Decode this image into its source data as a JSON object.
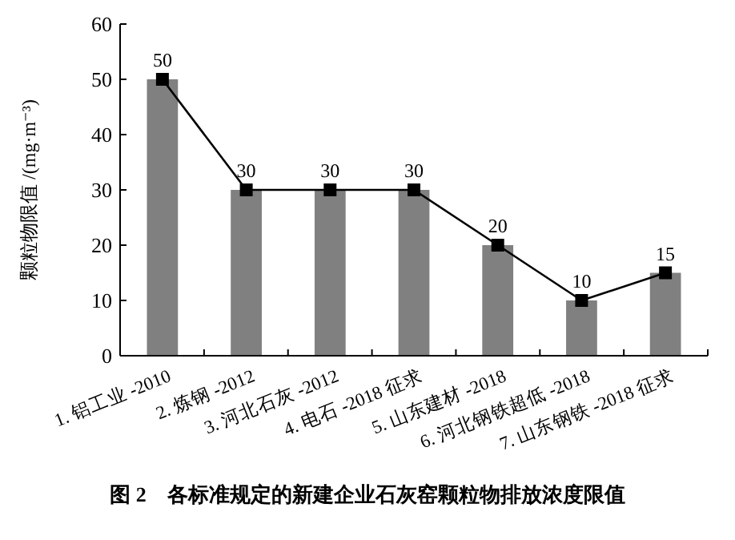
{
  "chart_data": {
    "type": "bar",
    "title": "图 2　各标准规定的新建企业石灰窑颗粒物排放浓度限值",
    "ylabel": "颗粒物限值 /(mg·m⁻³)",
    "categories": [
      "1. 铝工业 -2010",
      "2. 炼钢 -2012",
      "3. 河北石灰 -2012",
      "4. 电石 -2018 征求",
      "5. 山东建材 -2018",
      "6. 河北钢铁超低 -2018",
      "7. 山东钢铁 -2018 征求"
    ],
    "series": [
      {
        "color": "#808080",
        "values": [
          50,
          30,
          30,
          30,
          20,
          10,
          15
        ]
      },
      {
        "type": "line",
        "color": "#000000",
        "values": [
          50,
          30,
          30,
          30,
          20,
          10,
          15
        ],
        "value_labels": [
          "50",
          "30",
          "30",
          "30",
          "20",
          "10",
          "15"
        ]
      }
    ],
    "ylim": [
      0,
      60
    ],
    "yticks": [
      0,
      10,
      20,
      30,
      40,
      50,
      60
    ],
    "marker": "square",
    "grid": false
  }
}
